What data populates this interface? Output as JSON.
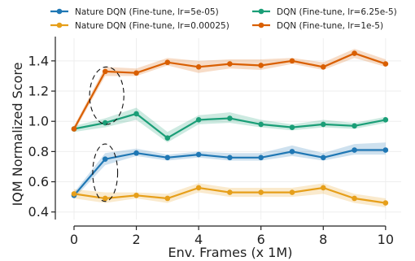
{
  "chart_data": {
    "type": "line",
    "xlabel": "Env. Frames (x 1M)",
    "ylabel": "IQM Normalized Score",
    "xlim": [
      -0.6,
      10.5
    ],
    "ylim": [
      0.35,
      1.55
    ],
    "xticks": [
      0,
      2,
      4,
      6,
      8,
      10
    ],
    "yticks": [
      0.4,
      0.6,
      0.8,
      1.0,
      1.2,
      1.4
    ],
    "xtick_labels": [
      "0",
      "2",
      "4",
      "6",
      "8",
      "10"
    ],
    "ytick_labels": [
      "0.4",
      "0.6",
      "0.8",
      "1.0",
      "1.2",
      "1.4"
    ],
    "grid": true,
    "legend_position": "top",
    "x": [
      0,
      1,
      2,
      3,
      4,
      5,
      6,
      7,
      8,
      9,
      10
    ],
    "series": [
      {
        "name": "Nature DQN (Fine-tune, lr=5e-05)",
        "color": "#1f77b4",
        "values": [
          0.51,
          0.75,
          0.79,
          0.76,
          0.78,
          0.76,
          0.76,
          0.8,
          0.76,
          0.81,
          0.81
        ],
        "lower": [
          0.49,
          0.71,
          0.77,
          0.74,
          0.76,
          0.74,
          0.74,
          0.77,
          0.74,
          0.78,
          0.78
        ],
        "upper": [
          0.53,
          0.79,
          0.82,
          0.78,
          0.8,
          0.79,
          0.79,
          0.84,
          0.79,
          0.85,
          0.86
        ]
      },
      {
        "name": "Nature DQN (Fine-tune, lr=0.00025)",
        "color": "#e69f1a",
        "values": [
          0.52,
          0.49,
          0.51,
          0.49,
          0.56,
          0.53,
          0.53,
          0.53,
          0.56,
          0.49,
          0.46
        ],
        "lower": [
          0.49,
          0.46,
          0.49,
          0.46,
          0.53,
          0.5,
          0.5,
          0.5,
          0.52,
          0.46,
          0.43
        ],
        "upper": [
          0.55,
          0.53,
          0.53,
          0.52,
          0.59,
          0.56,
          0.56,
          0.56,
          0.59,
          0.52,
          0.49
        ]
      },
      {
        "name": "DQN (Fine-tune, lr=6.25e-5)",
        "color": "#1a9e77",
        "values": [
          0.95,
          0.99,
          1.05,
          0.89,
          1.01,
          1.02,
          0.98,
          0.96,
          0.98,
          0.97,
          1.01
        ],
        "lower": [
          0.93,
          0.96,
          1.01,
          0.86,
          0.98,
          0.99,
          0.96,
          0.94,
          0.96,
          0.95,
          0.99
        ],
        "upper": [
          0.97,
          1.02,
          1.09,
          0.93,
          1.04,
          1.06,
          1.01,
          0.98,
          1.01,
          0.99,
          1.03
        ]
      },
      {
        "name": "DQN (Fine-tune, lr=1e-5)",
        "color": "#d95f02",
        "values": [
          0.95,
          1.33,
          1.32,
          1.39,
          1.36,
          1.38,
          1.37,
          1.4,
          1.36,
          1.45,
          1.38
        ],
        "lower": [
          0.93,
          1.3,
          1.3,
          1.37,
          1.32,
          1.35,
          1.34,
          1.38,
          1.34,
          1.42,
          1.36
        ],
        "upper": [
          0.97,
          1.36,
          1.35,
          1.42,
          1.4,
          1.41,
          1.41,
          1.42,
          1.39,
          1.48,
          1.41
        ]
      }
    ],
    "annotations": [
      {
        "type": "dashed-ellipse",
        "x_center": 1.05,
        "y_center": 1.17,
        "x_radius": 0.55,
        "y_radius": 0.19
      },
      {
        "type": "dashed-ellipse",
        "x_center": 1.0,
        "y_center": 0.66,
        "x_radius": 0.4,
        "y_radius": 0.19
      }
    ]
  }
}
